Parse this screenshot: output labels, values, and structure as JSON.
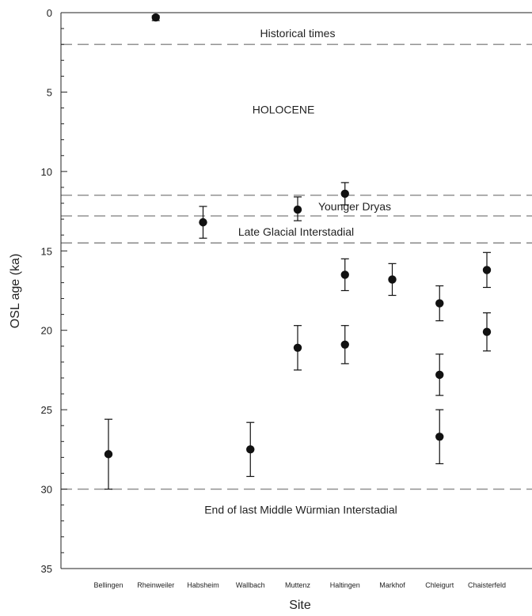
{
  "chart_data": {
    "type": "scatter",
    "title": "",
    "xlabel": "Site",
    "ylabel": "OSL age (ka)",
    "ylim": [
      0,
      35
    ],
    "y_inverted": true,
    "y_ticks": [
      0,
      5,
      10,
      15,
      20,
      25,
      30,
      35
    ],
    "y_tick_labels": [
      "0",
      "5",
      "10",
      "15",
      "20",
      "25",
      "30",
      "35"
    ],
    "grid": false,
    "categories": [
      "Bellingen",
      "Rheinweiler",
      "Habsheim",
      "Wallbach",
      "Muttenz",
      "Haltingen",
      "Markhof",
      "Chleigurt",
      "Chaisterfeld"
    ],
    "series": [
      {
        "points": [
          {
            "site": "Bellingen",
            "age": 27.8,
            "low": 25.6,
            "high": 30.0
          },
          {
            "site": "Rheinweiler",
            "age": 0.3,
            "low": 0.2,
            "high": 0.5
          },
          {
            "site": "Habsheim",
            "age": 13.2,
            "low": 12.2,
            "high": 14.2
          },
          {
            "site": "Wallbach",
            "age": 27.5,
            "low": 25.8,
            "high": 29.2
          },
          {
            "site": "Muttenz",
            "age": 12.4,
            "low": 11.6,
            "high": 13.1
          },
          {
            "site": "Muttenz",
            "age": 21.1,
            "low": 19.7,
            "high": 22.5
          },
          {
            "site": "Haltingen",
            "age": 11.4,
            "low": 10.7,
            "high": 12.1
          },
          {
            "site": "Haltingen",
            "age": 16.5,
            "low": 15.5,
            "high": 17.5
          },
          {
            "site": "Haltingen",
            "age": 20.9,
            "low": 19.7,
            "high": 22.1
          },
          {
            "site": "Markhof",
            "age": 16.8,
            "low": 15.8,
            "high": 17.8
          },
          {
            "site": "Chleigurt",
            "age": 18.3,
            "low": 17.2,
            "high": 19.4
          },
          {
            "site": "Chleigurt",
            "age": 22.8,
            "low": 21.5,
            "high": 24.1
          },
          {
            "site": "Chleigurt",
            "age": 26.7,
            "low": 25.0,
            "high": 28.4
          },
          {
            "site": "Chaisterfeld",
            "age": 16.2,
            "low": 15.1,
            "high": 17.3
          },
          {
            "site": "Chaisterfeld",
            "age": 20.1,
            "low": 18.9,
            "high": 21.3
          }
        ]
      }
    ],
    "reference_lines": [
      2.0,
      11.5,
      12.8,
      14.5,
      30.0
    ],
    "annotations": [
      {
        "text": "Historical times",
        "age": 1.3
      },
      {
        "text": "HOLOCENE",
        "age": 6.1
      },
      {
        "text": "Younger Dryas",
        "age": 12.2
      },
      {
        "text": "Late Glacial Interstadial",
        "age": 13.8
      },
      {
        "text": "End of last Middle Würmian Interstadial",
        "age": 31.3
      }
    ],
    "colors": {
      "marker": "#111111",
      "axis": "#222222",
      "reference_line": "#888888"
    }
  }
}
